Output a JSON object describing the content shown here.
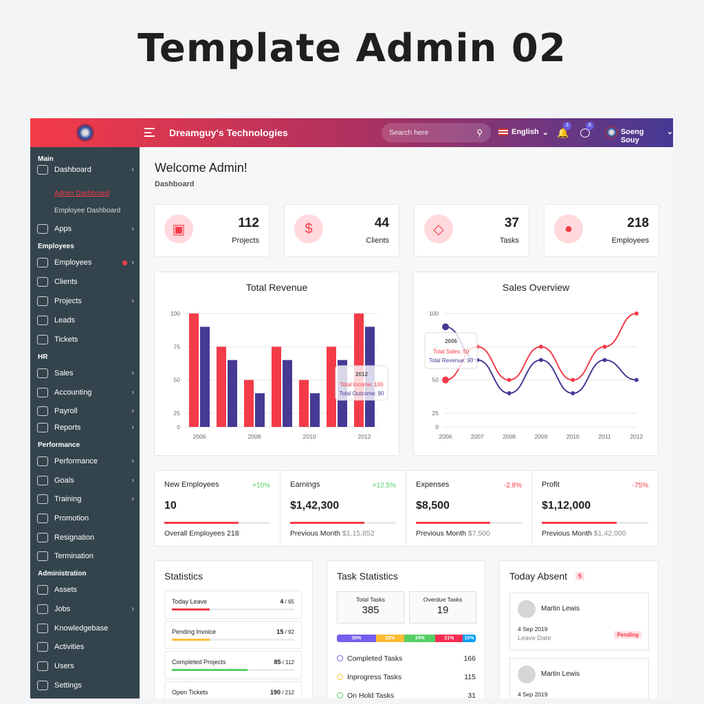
{
  "page_title": "Template Admin 02",
  "header": {
    "company": "Dreamguy's Technologies",
    "search_placeholder": "Search here",
    "language": "English",
    "notifications": "3",
    "messages": "8",
    "user": "Soeng Souy"
  },
  "sidebar": {
    "sections": [
      {
        "title": "Main",
        "items": [
          {
            "label": "Dashboard",
            "sub": [
              "Admin Dashboard",
              "Employee Dashboard"
            ]
          },
          {
            "label": "Apps"
          }
        ]
      },
      {
        "title": "Employees",
        "items": [
          {
            "label": "Employees"
          },
          {
            "label": "Clients"
          },
          {
            "label": "Projects"
          },
          {
            "label": "Leads"
          },
          {
            "label": "Tickets"
          }
        ]
      },
      {
        "title": "HR",
        "items": [
          {
            "label": "Sales"
          },
          {
            "label": "Accounting"
          },
          {
            "label": "Payroll"
          },
          {
            "label": "Reports"
          }
        ]
      },
      {
        "title": "Performance",
        "items": [
          {
            "label": "Performance"
          },
          {
            "label": "Goals"
          },
          {
            "label": "Training"
          },
          {
            "label": "Promotion"
          },
          {
            "label": "Resignation"
          },
          {
            "label": "Termination"
          }
        ]
      },
      {
        "title": "Administration",
        "items": [
          {
            "label": "Assets"
          },
          {
            "label": "Jobs"
          },
          {
            "label": "Knowledgebase"
          },
          {
            "label": "Activities"
          },
          {
            "label": "Users"
          },
          {
            "label": "Settings"
          }
        ]
      }
    ]
  },
  "welcome": "Welcome Admin!",
  "breadcrumb": "Dashboard",
  "stats": [
    {
      "value": "112",
      "label": "Projects",
      "icon": "cubes-icon"
    },
    {
      "value": "44",
      "label": "Clients",
      "icon": "dollar-icon"
    },
    {
      "value": "37",
      "label": "Tasks",
      "icon": "diamond-icon"
    },
    {
      "value": "218",
      "label": "Employees",
      "icon": "user-icon"
    }
  ],
  "chart_data": [
    {
      "type": "bar",
      "title": "Total Revenue",
      "categories": [
        "2006",
        "2007",
        "2008",
        "2009",
        "2010",
        "2011",
        "2012"
      ],
      "xticks": [
        "2006",
        "2008",
        "2010",
        "2012"
      ],
      "yticks": [
        "0",
        "25",
        "50",
        "75",
        "100"
      ],
      "ylim": [
        0,
        100
      ],
      "series": [
        {
          "name": "Total Income",
          "color": "#f43b48",
          "values": [
            100,
            75,
            50,
            75,
            50,
            75,
            100
          ]
        },
        {
          "name": "Total Outcome",
          "color": "#453a94",
          "values": [
            90,
            65,
            40,
            65,
            40,
            65,
            90
          ]
        }
      ],
      "tooltip": {
        "title": "2012",
        "lines": [
          "Total Income: 100",
          "Total Outcome: 90"
        ]
      }
    },
    {
      "type": "line",
      "title": "Sales Overview",
      "categories": [
        "2006",
        "2007",
        "2008",
        "2009",
        "2010",
        "2011",
        "2012"
      ],
      "yticks": [
        "0",
        "25",
        "50",
        "75",
        "100"
      ],
      "ylim": [
        0,
        100
      ],
      "series": [
        {
          "name": "Total Sales",
          "color": "#f43b48",
          "values": [
            50,
            75,
            50,
            75,
            50,
            75,
            100
          ]
        },
        {
          "name": "Total Revenue",
          "color": "#453a94",
          "values": [
            90,
            65,
            40,
            65,
            40,
            65,
            50
          ]
        }
      ],
      "tooltip": {
        "title": "2006",
        "lines": [
          "Total Sales: 50",
          "Total Revenue: 90"
        ]
      }
    }
  ],
  "kpis": [
    {
      "title": "New Employees",
      "change": "+10%",
      "up": true,
      "value": "10",
      "progress": 70,
      "footer": "Overall Employees 218",
      "footer_val": ""
    },
    {
      "title": "Earnings",
      "change": "+12.5%",
      "up": true,
      "value": "$1,42,300",
      "progress": 70,
      "footer": "Previous Month",
      "footer_val": "$1,15,852"
    },
    {
      "title": "Expenses",
      "change": "-2.8%",
      "up": false,
      "value": "$8,500",
      "progress": 70,
      "footer": "Previous Month",
      "footer_val": "$7,500"
    },
    {
      "title": "Profit",
      "change": "-75%",
      "up": false,
      "value": "$1,12,000",
      "progress": 70,
      "footer": "Previous Month",
      "footer_val": "$1,42,000"
    }
  ],
  "statistics": {
    "title": "Statistics",
    "items": [
      {
        "label": "Today Leave",
        "num": "4",
        "den": "/ 65",
        "progress": 31,
        "color": "#f43b48"
      },
      {
        "label": "Pending Invoice",
        "num": "15",
        "den": "/ 92",
        "progress": 31,
        "color": "#ffbc34"
      },
      {
        "label": "Completed Projects",
        "num": "85",
        "den": "/ 112",
        "progress": 62,
        "color": "#55ce63"
      },
      {
        "label": "Open Tickets",
        "num": "190",
        "den": "/ 212",
        "progress": 60,
        "color": "#009efb"
      }
    ]
  },
  "task_stats": {
    "title": "Task Statistics",
    "total_label": "Total Tasks",
    "total": "385",
    "overdue_label": "Overdue Tasks",
    "overdue": "19",
    "segments": [
      {
        "label": "30%",
        "value": 30,
        "color": "#7460ee"
      },
      {
        "label": "22%",
        "value": 22,
        "color": "#ffbc34"
      },
      {
        "label": "24%",
        "value": 24,
        "color": "#55ce63"
      },
      {
        "label": "21%",
        "value": 21,
        "color": "#f62d51"
      },
      {
        "label": "10%",
        "value": 10,
        "color": "#009efb"
      }
    ],
    "list": [
      {
        "label": "Completed Tasks",
        "value": "166",
        "color": "#7460ee"
      },
      {
        "label": "Inprogress Tasks",
        "value": "115",
        "color": "#ffbc34"
      },
      {
        "label": "On Hold Tasks",
        "value": "31",
        "color": "#55ce63"
      }
    ]
  },
  "absent": {
    "title": "Today Absent",
    "count": "5",
    "people": [
      {
        "name": "Martin Lewis",
        "date": "4 Sep 2019",
        "date_label": "Leave Date",
        "status": "Pending"
      },
      {
        "name": "Martin Lewis",
        "date": "4 Sep 2019"
      }
    ]
  }
}
